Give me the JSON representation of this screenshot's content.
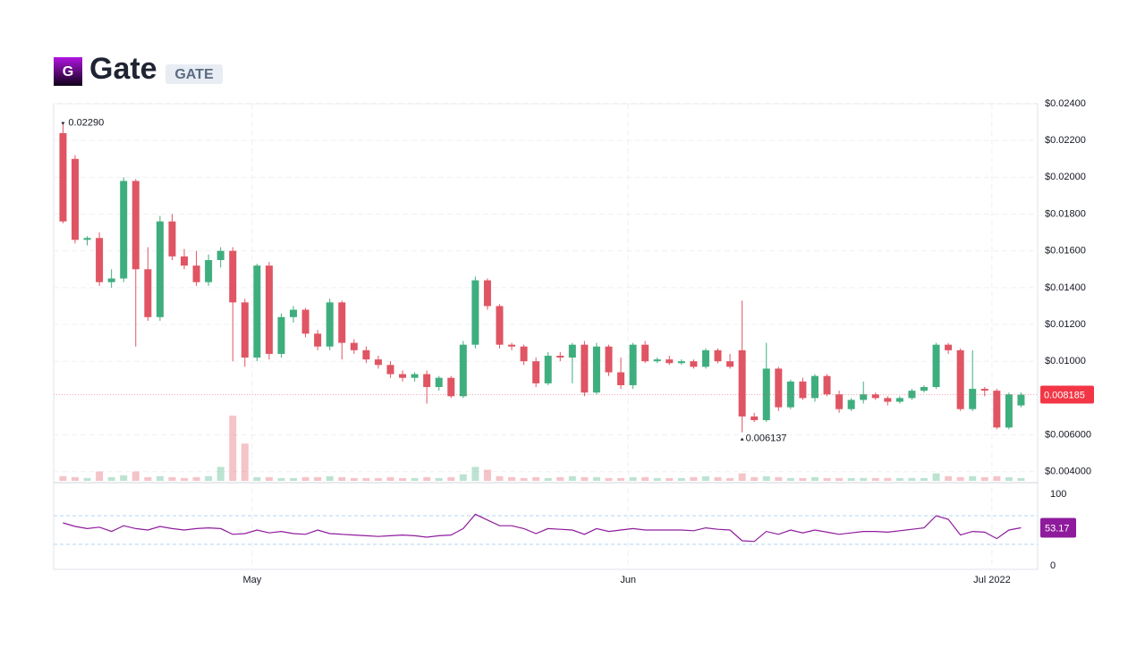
{
  "header": {
    "logo": "G",
    "title": "Gate",
    "symbol": "GATE"
  },
  "chart_data": {
    "type": "candlestick",
    "up_color": "#3fae7e",
    "down_color": "#e05563",
    "ohlc": [
      [
        0.0224,
        0.0229,
        0.0175,
        0.0176
      ],
      [
        0.021,
        0.0212,
        0.0164,
        0.0166
      ],
      [
        0.0166,
        0.0168,
        0.0163,
        0.0167
      ],
      [
        0.0167,
        0.017,
        0.0141,
        0.0143
      ],
      [
        0.0143,
        0.015,
        0.014,
        0.0145
      ],
      [
        0.0145,
        0.02,
        0.0143,
        0.0198
      ],
      [
        0.0198,
        0.0199,
        0.0108,
        0.015
      ],
      [
        0.015,
        0.0162,
        0.0122,
        0.0124
      ],
      [
        0.0124,
        0.0179,
        0.0122,
        0.0176
      ],
      [
        0.0176,
        0.018,
        0.0155,
        0.0157
      ],
      [
        0.0157,
        0.0161,
        0.015,
        0.0152
      ],
      [
        0.0152,
        0.016,
        0.0141,
        0.0143
      ],
      [
        0.0143,
        0.0158,
        0.0141,
        0.0155
      ],
      [
        0.0155,
        0.0162,
        0.0151,
        0.016
      ],
      [
        0.016,
        0.0162,
        0.01,
        0.0132
      ],
      [
        0.0132,
        0.0134,
        0.0097,
        0.0102
      ],
      [
        0.0102,
        0.0153,
        0.01,
        0.0152
      ],
      [
        0.0152,
        0.0154,
        0.0101,
        0.0104
      ],
      [
        0.0104,
        0.0126,
        0.0102,
        0.0124
      ],
      [
        0.0124,
        0.013,
        0.0121,
        0.0128
      ],
      [
        0.0128,
        0.0129,
        0.0113,
        0.0115
      ],
      [
        0.0115,
        0.0117,
        0.0106,
        0.0108
      ],
      [
        0.0108,
        0.0134,
        0.0106,
        0.0132
      ],
      [
        0.0132,
        0.0133,
        0.0101,
        0.011
      ],
      [
        0.011,
        0.0112,
        0.0104,
        0.0106
      ],
      [
        0.0106,
        0.0108,
        0.0099,
        0.0101
      ],
      [
        0.0101,
        0.0103,
        0.0096,
        0.0098
      ],
      [
        0.0098,
        0.01,
        0.0091,
        0.0093
      ],
      [
        0.0093,
        0.0095,
        0.0089,
        0.0091
      ],
      [
        0.0091,
        0.0094,
        0.0089,
        0.0093
      ],
      [
        0.0093,
        0.0095,
        0.0077,
        0.0086
      ],
      [
        0.0086,
        0.0092,
        0.0084,
        0.0091
      ],
      [
        0.0091,
        0.0092,
        0.008,
        0.0081
      ],
      [
        0.0081,
        0.0111,
        0.008,
        0.0109
      ],
      [
        0.0109,
        0.0146,
        0.0107,
        0.0144
      ],
      [
        0.0144,
        0.0145,
        0.0128,
        0.013
      ],
      [
        0.013,
        0.0131,
        0.0107,
        0.0109
      ],
      [
        0.0109,
        0.011,
        0.0106,
        0.0108
      ],
      [
        0.0108,
        0.0109,
        0.0098,
        0.01
      ],
      [
        0.01,
        0.0102,
        0.0086,
        0.0088
      ],
      [
        0.0088,
        0.0105,
        0.0087,
        0.0103
      ],
      [
        0.0103,
        0.0105,
        0.01,
        0.0102
      ],
      [
        0.0102,
        0.011,
        0.0088,
        0.0109
      ],
      [
        0.0109,
        0.0111,
        0.0081,
        0.0083
      ],
      [
        0.0083,
        0.011,
        0.0082,
        0.0108
      ],
      [
        0.0108,
        0.0109,
        0.0092,
        0.0094
      ],
      [
        0.0094,
        0.0102,
        0.0085,
        0.0087
      ],
      [
        0.0087,
        0.011,
        0.0085,
        0.0109
      ],
      [
        0.0109,
        0.0111,
        0.0099,
        0.01
      ],
      [
        0.01,
        0.0102,
        0.0099,
        0.0101
      ],
      [
        0.0101,
        0.0103,
        0.0098,
        0.0099
      ],
      [
        0.0099,
        0.0101,
        0.0098,
        0.01
      ],
      [
        0.01,
        0.0101,
        0.0096,
        0.0097
      ],
      [
        0.0097,
        0.0107,
        0.0096,
        0.0106
      ],
      [
        0.0106,
        0.0107,
        0.0099,
        0.01
      ],
      [
        0.01,
        0.0104,
        0.0096,
        0.0097
      ],
      [
        0.0106,
        0.0133,
        0.006137,
        0.007
      ],
      [
        0.007,
        0.0072,
        0.0067,
        0.0068
      ],
      [
        0.0068,
        0.011,
        0.0067,
        0.0096
      ],
      [
        0.0096,
        0.0097,
        0.0073,
        0.0075
      ],
      [
        0.0075,
        0.009,
        0.0074,
        0.0089
      ],
      [
        0.0089,
        0.0091,
        0.0079,
        0.008
      ],
      [
        0.008,
        0.0093,
        0.0078,
        0.0092
      ],
      [
        0.0092,
        0.0093,
        0.0081,
        0.0082
      ],
      [
        0.0082,
        0.0084,
        0.0072,
        0.0074
      ],
      [
        0.0074,
        0.008,
        0.0073,
        0.0079
      ],
      [
        0.0079,
        0.0089,
        0.0077,
        0.0082
      ],
      [
        0.0082,
        0.0083,
        0.0079,
        0.008
      ],
      [
        0.008,
        0.0081,
        0.0076,
        0.0078
      ],
      [
        0.0078,
        0.0081,
        0.0077,
        0.008
      ],
      [
        0.008,
        0.0085,
        0.0079,
        0.0084
      ],
      [
        0.0084,
        0.0087,
        0.0083,
        0.0086
      ],
      [
        0.0086,
        0.011,
        0.0085,
        0.0109
      ],
      [
        0.0109,
        0.011,
        0.0104,
        0.0106
      ],
      [
        0.0106,
        0.0107,
        0.0073,
        0.0074
      ],
      [
        0.0074,
        0.0106,
        0.0073,
        0.0085
      ],
      [
        0.0085,
        0.0086,
        0.0081,
        0.0084
      ],
      [
        0.0084,
        0.0085,
        0.0063,
        0.0064
      ],
      [
        0.0064,
        0.0083,
        0.0063,
        0.0082
      ],
      [
        0.0076,
        0.0083,
        0.0075,
        0.008185
      ]
    ],
    "volume": [
      5,
      4,
      3,
      10,
      4,
      6,
      10,
      4,
      5,
      4,
      3,
      4,
      5,
      15,
      70,
      40,
      4,
      4,
      3,
      3,
      4,
      4,
      5,
      4,
      3,
      3,
      3,
      4,
      3,
      3,
      4,
      3,
      4,
      7,
      15,
      12,
      5,
      4,
      3,
      4,
      3,
      4,
      5,
      4,
      4,
      3,
      3,
      4,
      4,
      3,
      3,
      3,
      4,
      5,
      4,
      3,
      8,
      4,
      5,
      4,
      3,
      3,
      4,
      3,
      3,
      3,
      3,
      3,
      3,
      3,
      3,
      3,
      8,
      5,
      4,
      5,
      4,
      5,
      4,
      3
    ],
    "rsi": [
      60,
      55,
      52,
      54,
      48,
      56,
      52,
      50,
      55,
      52,
      50,
      52,
      53,
      52,
      44,
      45,
      50,
      46,
      48,
      45,
      44,
      50,
      45,
      44,
      43,
      42,
      41,
      42,
      43,
      42,
      40,
      42,
      43,
      52,
      72,
      64,
      56,
      56,
      52,
      45,
      52,
      51,
      50,
      44,
      52,
      48,
      50,
      52,
      50,
      50,
      50,
      50,
      49,
      53,
      51,
      50,
      35,
      34,
      48,
      44,
      50,
      46,
      50,
      47,
      44,
      46,
      48,
      48,
      47,
      49,
      51,
      53,
      70,
      65,
      43,
      48,
      47,
      38,
      50,
      53.17
    ],
    "ylim": [
      0.0035,
      0.024
    ],
    "yticks": [
      {
        "value": 0.024,
        "label": "$0.02400"
      },
      {
        "value": 0.022,
        "label": "$0.02200"
      },
      {
        "value": 0.02,
        "label": "$0.02000"
      },
      {
        "value": 0.018,
        "label": "$0.01800"
      },
      {
        "value": 0.016,
        "label": "$0.01600"
      },
      {
        "value": 0.014,
        "label": "$0.01400"
      },
      {
        "value": 0.012,
        "label": "$0.01200"
      },
      {
        "value": 0.01,
        "label": "$0.01000"
      },
      {
        "value": 0.006,
        "label": "$0.006000"
      },
      {
        "value": 0.004,
        "label": "$0.004000"
      }
    ],
    "xlim": [
      -0.4,
      80
    ],
    "xticks": [
      {
        "value": 15.6,
        "label": "May"
      },
      {
        "value": 46.6,
        "label": "Jun"
      },
      {
        "value": 76.6,
        "label": "Jul 2022"
      }
    ],
    "rsi_ylim": [
      -5,
      110
    ],
    "rsi_yticks": [
      0,
      100
    ],
    "rsi_levels": [
      30,
      70
    ],
    "rsi_color": "#8e1b9c",
    "max_label": "0.02290",
    "min_label": "0.006137",
    "last_price_label": "0.008185",
    "rsi_last_label": "53.17"
  }
}
